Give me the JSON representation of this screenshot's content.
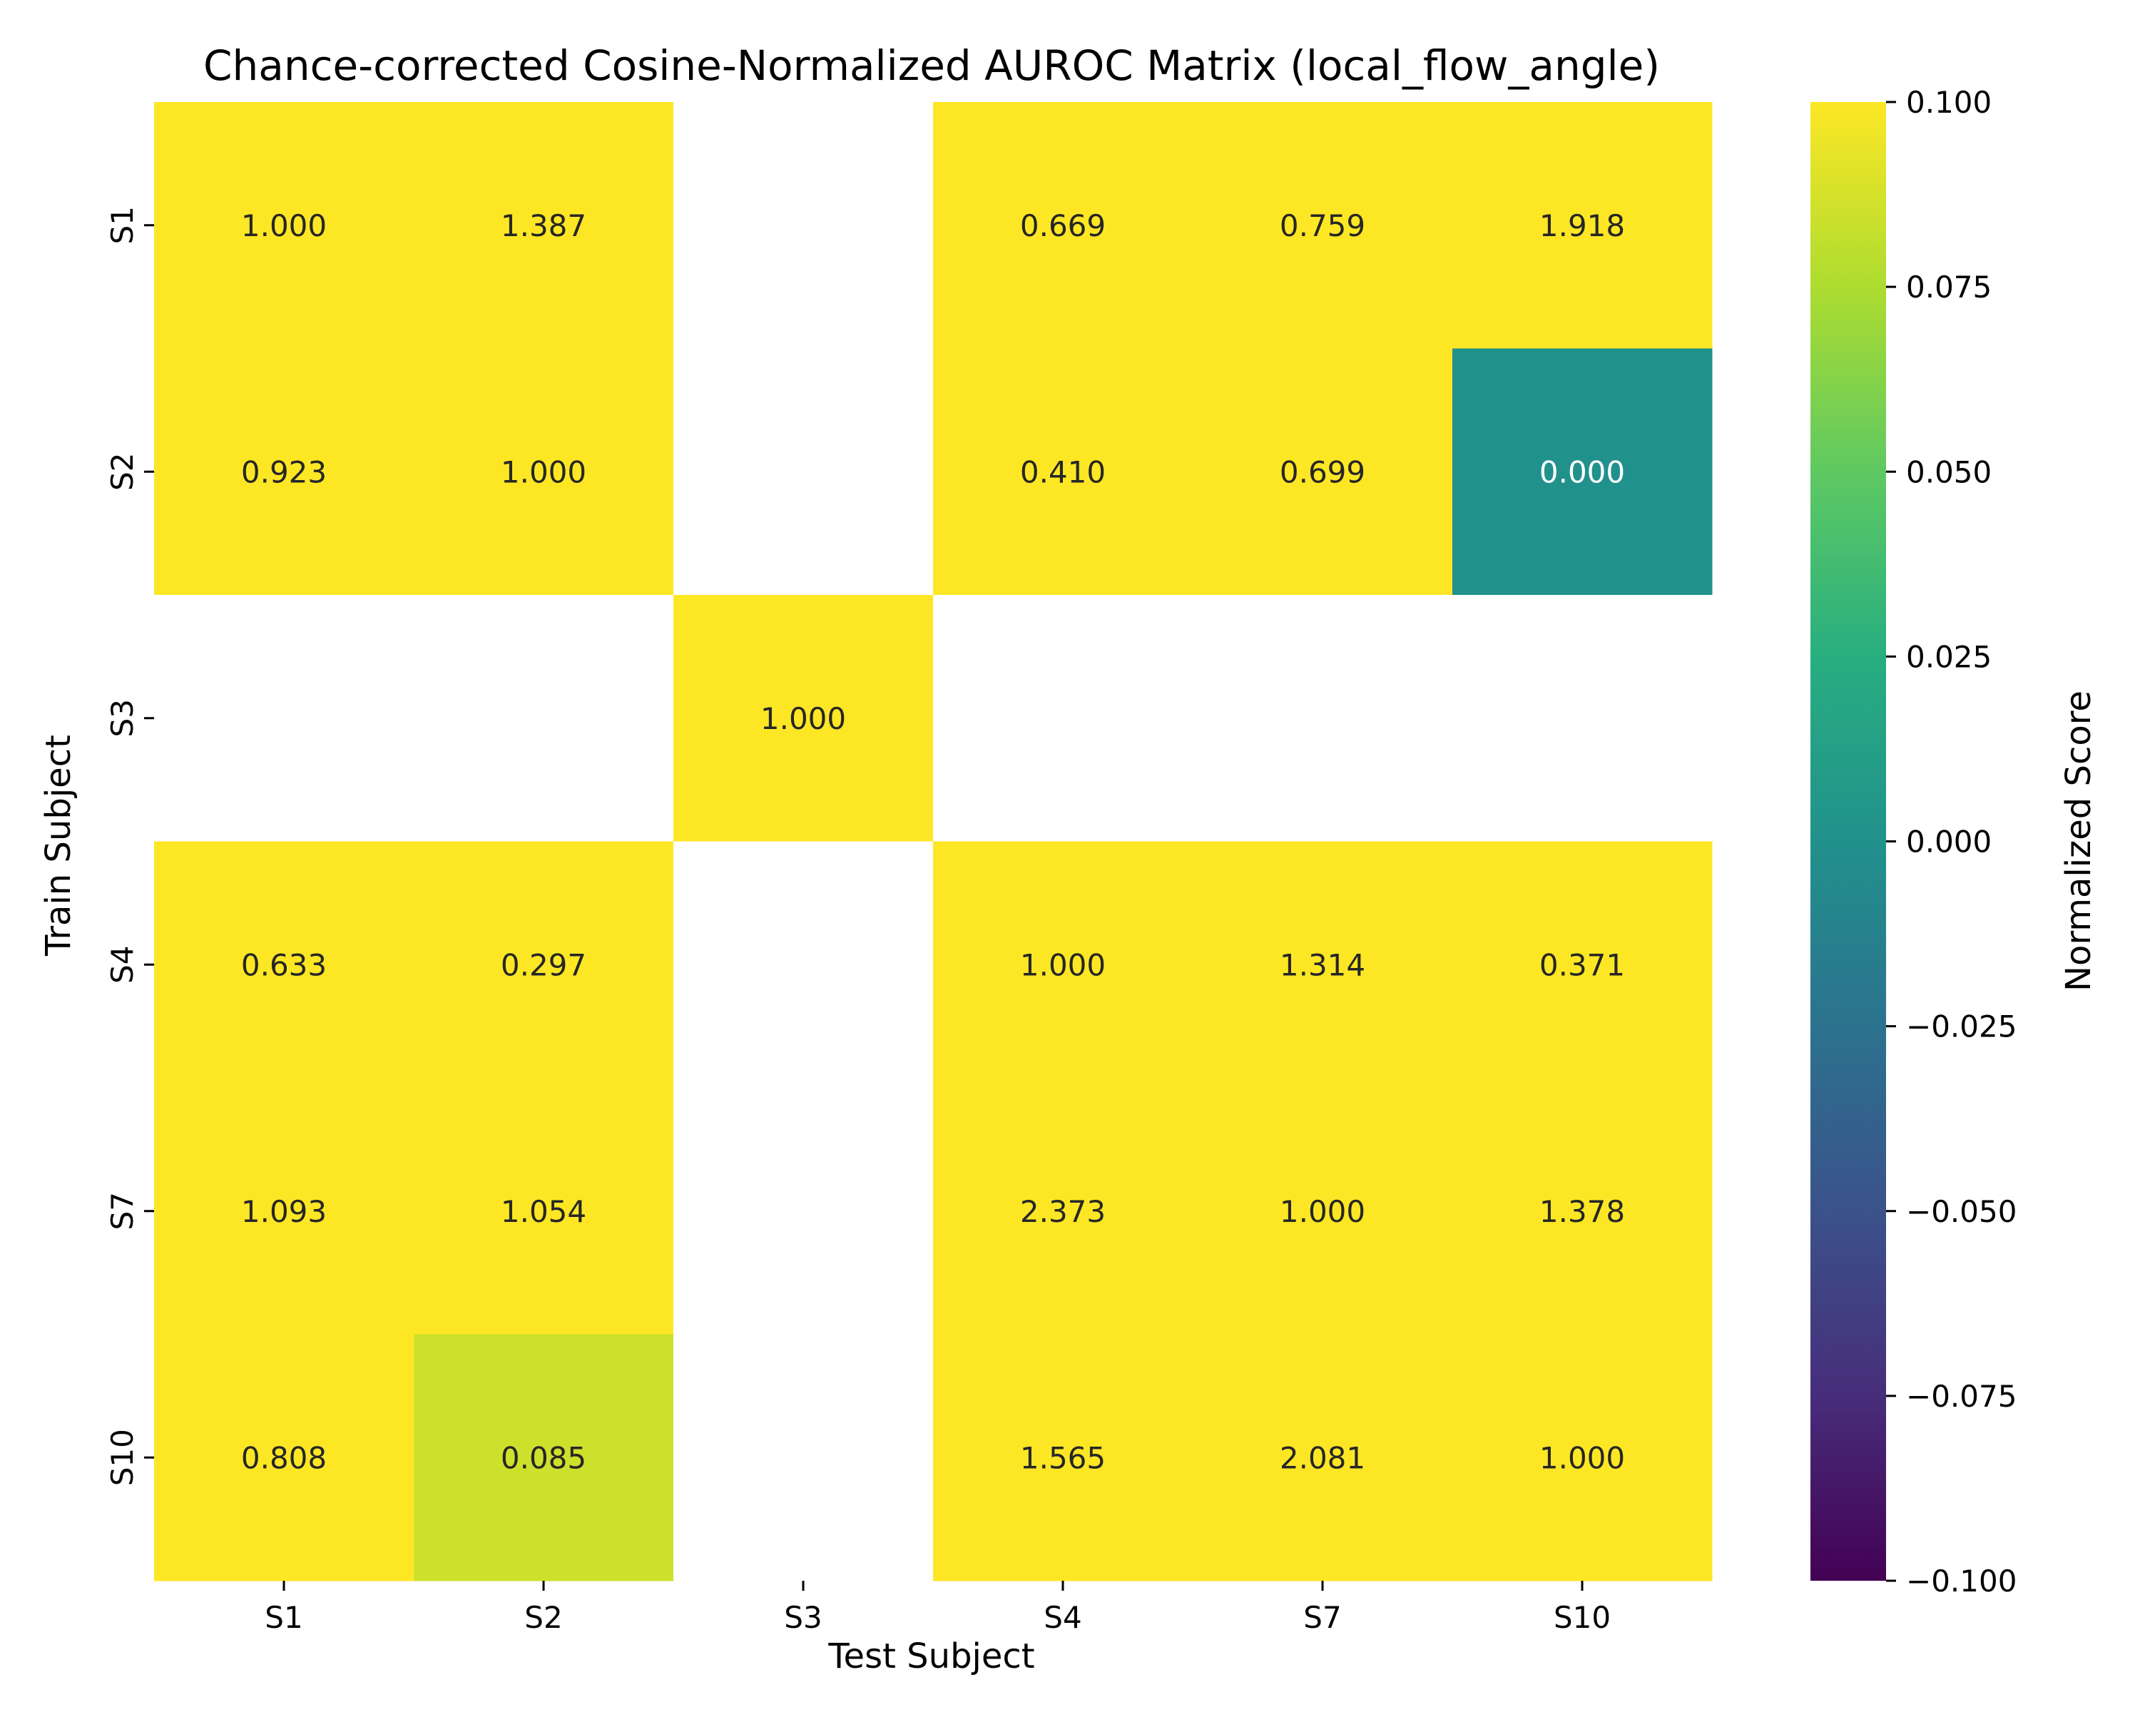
{
  "chart_data": {
    "type": "heatmap",
    "title": "Chance-corrected Cosine-Normalized AUROC Matrix (local_flow_angle)",
    "xlabel": "Test Subject",
    "ylabel": "Train Subject",
    "x_categories": [
      "S1",
      "S2",
      "S3",
      "S4",
      "S7",
      "S10"
    ],
    "y_categories": [
      "S1",
      "S2",
      "S3",
      "S4",
      "S7",
      "S10"
    ],
    "values": [
      [
        1.0,
        1.387,
        null,
        0.669,
        0.759,
        1.918
      ],
      [
        0.923,
        1.0,
        null,
        0.41,
        0.699,
        0.0
      ],
      [
        null,
        null,
        1.0,
        null,
        null,
        null
      ],
      [
        0.633,
        0.297,
        null,
        1.0,
        1.314,
        0.371
      ],
      [
        1.093,
        1.054,
        null,
        2.373,
        1.0,
        1.378
      ],
      [
        0.808,
        0.085,
        null,
        1.565,
        2.081,
        1.0
      ]
    ],
    "value_labels": [
      [
        "1.000",
        "1.387",
        "",
        "0.669",
        "0.759",
        "1.918"
      ],
      [
        "0.923",
        "1.000",
        "",
        "0.410",
        "0.699",
        "0.000"
      ],
      [
        "",
        "",
        "1.000",
        "",
        "",
        ""
      ],
      [
        "0.633",
        "0.297",
        "",
        "1.000",
        "1.314",
        "0.371"
      ],
      [
        "1.093",
        "1.054",
        "",
        "2.373",
        "1.000",
        "1.378"
      ],
      [
        "0.808",
        "0.085",
        "",
        "1.565",
        "2.081",
        "1.000"
      ]
    ],
    "colorbar": {
      "label": "Normalized Score",
      "vmin": -0.1,
      "vmax": 0.1,
      "ticks": [
        0.1,
        0.075,
        0.05,
        0.025,
        0.0,
        -0.025,
        -0.05,
        -0.075,
        -0.1
      ],
      "tick_labels": [
        "0.100",
        "0.075",
        "0.050",
        "0.025",
        "0.000",
        "−0.025",
        "−0.050",
        "−0.075",
        "−0.100"
      ],
      "colormap": "viridis"
    },
    "grid": false,
    "missing_color": "#ffffff"
  }
}
